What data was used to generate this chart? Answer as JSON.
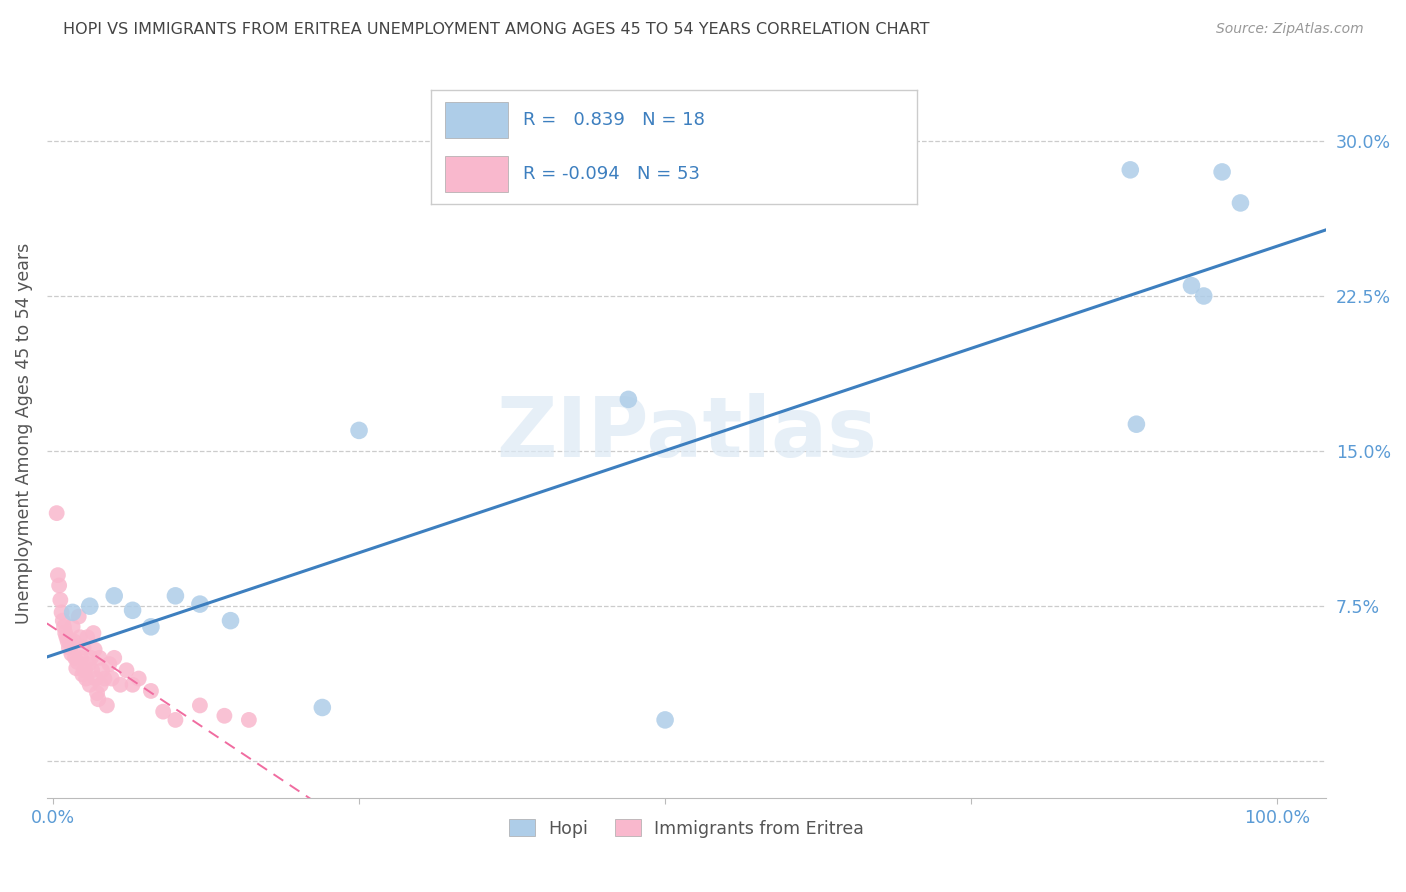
{
  "title": "HOPI VS IMMIGRANTS FROM ERITREA UNEMPLOYMENT AMONG AGES 45 TO 54 YEARS CORRELATION CHART",
  "source": "Source: ZipAtlas.com",
  "ylabel": "Unemployment Among Ages 45 to 54 years",
  "xlim": [
    -0.005,
    1.04
  ],
  "ylim": [
    -0.018,
    0.335
  ],
  "xticks": [
    0.0,
    0.25,
    0.5,
    0.75,
    1.0
  ],
  "xtick_labels": [
    "0.0%",
    "",
    "",
    "",
    "100.0%"
  ],
  "yticks": [
    0.0,
    0.075,
    0.15,
    0.225,
    0.3
  ],
  "ytick_labels": [
    "",
    "7.5%",
    "15.0%",
    "22.5%",
    "30.0%"
  ],
  "hopi_color": "#aecde8",
  "eritrea_color": "#f9b8cd",
  "hopi_line_color": "#3d7fbf",
  "eritrea_line_color": "#f06ca0",
  "legend_text_color": "#3d7fbf",
  "R_hopi": "0.839",
  "N_hopi": "18",
  "R_eritrea": "-0.094",
  "N_eritrea": "53",
  "legend_label_hopi": "Hopi",
  "legend_label_eritrea": "Immigrants from Eritrea",
  "background_color": "#ffffff",
  "grid_color": "#cccccc",
  "axis_label_color": "#5b9bd5",
  "title_color": "#444444",
  "hopi_x": [
    0.016,
    0.03,
    0.05,
    0.065,
    0.08,
    0.1,
    0.12,
    0.145,
    0.22,
    0.5,
    0.88,
    0.93,
    0.955,
    0.97,
    0.94,
    0.885,
    0.25,
    0.47
  ],
  "hopi_y": [
    0.072,
    0.075,
    0.08,
    0.073,
    0.065,
    0.08,
    0.076,
    0.068,
    0.026,
    0.02,
    0.286,
    0.23,
    0.285,
    0.27,
    0.225,
    0.163,
    0.16,
    0.175
  ],
  "eritrea_x": [
    0.003,
    0.004,
    0.005,
    0.006,
    0.007,
    0.008,
    0.009,
    0.01,
    0.011,
    0.012,
    0.013,
    0.014,
    0.015,
    0.016,
    0.017,
    0.018,
    0.019,
    0.02,
    0.021,
    0.022,
    0.023,
    0.024,
    0.025,
    0.026,
    0.027,
    0.028,
    0.029,
    0.03,
    0.031,
    0.032,
    0.033,
    0.034,
    0.035,
    0.036,
    0.037,
    0.038,
    0.039,
    0.04,
    0.042,
    0.044,
    0.046,
    0.048,
    0.05,
    0.055,
    0.06,
    0.065,
    0.07,
    0.08,
    0.09,
    0.1,
    0.12,
    0.14,
    0.16
  ],
  "eritrea_y": [
    0.12,
    0.09,
    0.085,
    0.078,
    0.072,
    0.068,
    0.065,
    0.062,
    0.06,
    0.058,
    0.055,
    0.058,
    0.052,
    0.065,
    0.058,
    0.05,
    0.045,
    0.048,
    0.07,
    0.06,
    0.05,
    0.042,
    0.055,
    0.044,
    0.04,
    0.06,
    0.047,
    0.037,
    0.05,
    0.044,
    0.062,
    0.054,
    0.04,
    0.033,
    0.03,
    0.05,
    0.037,
    0.044,
    0.04,
    0.027,
    0.047,
    0.04,
    0.05,
    0.037,
    0.044,
    0.037,
    0.04,
    0.034,
    0.024,
    0.02,
    0.027,
    0.022,
    0.02
  ],
  "watermark": "ZIPatlas",
  "watermark_color": "#dce9f5"
}
